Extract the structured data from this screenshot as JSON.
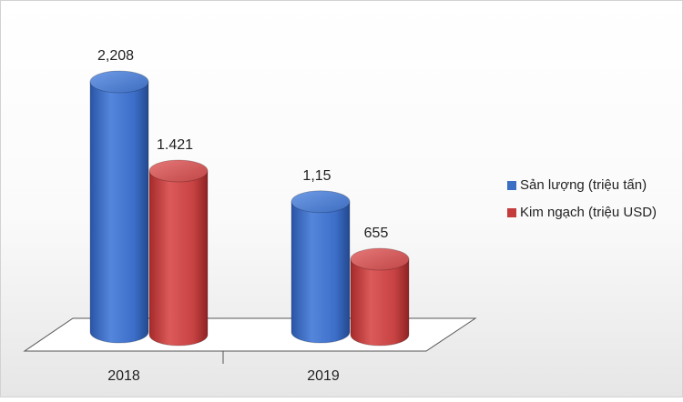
{
  "chart_data": {
    "type": "bar",
    "style": "3d-cylinder",
    "categories": [
      "2018",
      "2019"
    ],
    "series": [
      {
        "name": "Sản lượng (triệu tấn)",
        "color": "#3a6fc4",
        "values": [
          2.208,
          1.15
        ],
        "labels": [
          "2,208",
          "1,15"
        ]
      },
      {
        "name": "Kim ngạch (triệu USD)",
        "color": "#c43c3c",
        "values": [
          1421,
          655
        ],
        "labels": [
          "1.421",
          "655"
        ]
      }
    ],
    "legend_position": "right",
    "grid": false
  }
}
